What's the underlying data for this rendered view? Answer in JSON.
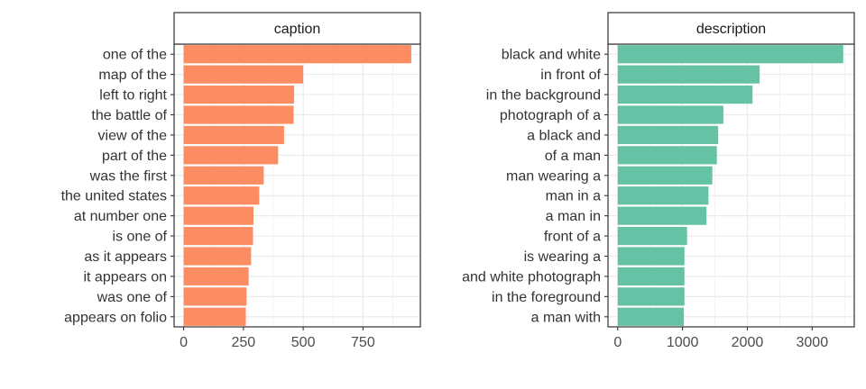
{
  "chart_data": [
    {
      "type": "bar",
      "orientation": "horizontal",
      "title": "caption",
      "color": "#FC8D62",
      "categories": [
        "one of the",
        "map of the",
        "left to right",
        "the battle of",
        "view of the",
        "part of the",
        "was the first",
        "the united states",
        "at number one",
        "is one of",
        "as it appears",
        "it appears on",
        "was one of",
        "appears on folio"
      ],
      "values": [
        952,
        500,
        462,
        460,
        420,
        395,
        335,
        316,
        292,
        290,
        282,
        272,
        263,
        260
      ],
      "xlim": [
        -40,
        990
      ],
      "xticks": [
        0,
        250,
        500,
        750
      ],
      "xlabel": "",
      "ylabel": "",
      "grid": true,
      "legend": "none"
    },
    {
      "type": "bar",
      "orientation": "horizontal",
      "title": "description",
      "color": "#66C2A5",
      "categories": [
        "black and white",
        "in front of",
        "in the background",
        "photograph of a",
        "a black and",
        "of a man",
        "man wearing a",
        "man in a",
        "a man in",
        "front of a",
        "is wearing a",
        "and white photograph",
        "in the foreground",
        "a man with"
      ],
      "values": [
        3480,
        2190,
        2080,
        1630,
        1550,
        1530,
        1460,
        1400,
        1370,
        1070,
        1030,
        1030,
        1030,
        1020
      ],
      "xlim": [
        -150,
        3650
      ],
      "xticks": [
        0,
        1000,
        2000,
        3000
      ],
      "xlabel": "",
      "ylabel": "",
      "grid": true,
      "legend": "none"
    }
  ]
}
